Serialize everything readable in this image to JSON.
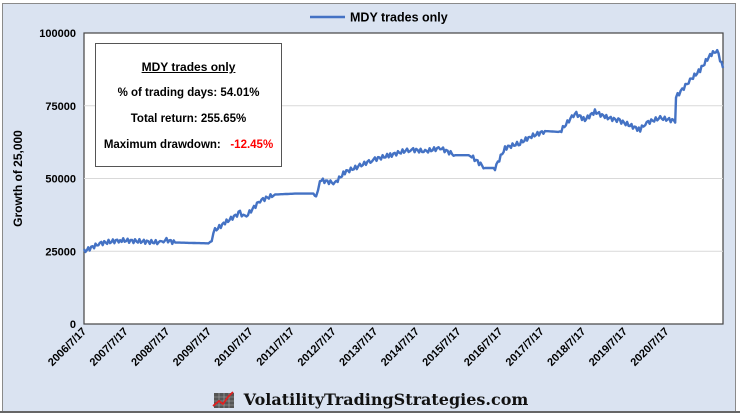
{
  "chart_data": {
    "type": "line",
    "title": "MDY trades only",
    "ylabel": "Growth of 25,000",
    "xlabel": "",
    "ylim": [
      0,
      100000
    ],
    "xlim": [
      2006.54,
      2021.9
    ],
    "yticks": [
      0,
      25000,
      50000,
      75000,
      100000
    ],
    "ytick_labels": [
      "0",
      "25000",
      "50000",
      "75000",
      "100000"
    ],
    "xtick_labels": [
      "2006/7/17",
      "2007/7/17",
      "2008/7/17",
      "2009/7/17",
      "2010/7/17",
      "2011/7/17",
      "2012/7/17",
      "2013/7/17",
      "2014/7/17",
      "2015/7/17",
      "2016/7/17",
      "2017/7/17",
      "2018/7/17",
      "2019/7/17",
      "2020/7/17"
    ],
    "legend": {
      "position": "top-center",
      "entries": [
        "MDY trades only"
      ]
    },
    "grid": "horizontal",
    "series": [
      {
        "name": "MDY trades only",
        "color": "#4472c4",
        "x": [
          2006.54,
          2006.92,
          2007.41,
          2008.37,
          2008.49,
          2008.73,
          2009.57,
          2009.69,
          2009.93,
          2010.29,
          2010.41,
          2010.77,
          2011.13,
          2011.61,
          2012.09,
          2012.12,
          2012.21,
          2012.57,
          2012.81,
          2013.17,
          2013.46,
          2013.9,
          2014.38,
          2014.74,
          2015.1,
          2015.46,
          2015.82,
          2016.18,
          2016.42,
          2016.66,
          2017.02,
          2017.26,
          2017.62,
          2017.98,
          2018.34,
          2018.58,
          2018.82,
          2019.06,
          2019.42,
          2019.91,
          2020.03,
          2020.39,
          2020.75,
          2020.77,
          2021.11,
          2021.35,
          2021.59,
          2021.76,
          2021.9
        ],
        "values": [
          25000,
          27700,
          28800,
          28000,
          29000,
          28000,
          27700,
          32200,
          34800,
          38300,
          36600,
          42400,
          44500,
          44800,
          44800,
          43100,
          49500,
          48400,
          52200,
          54300,
          56400,
          58000,
          60000,
          59300,
          60500,
          58000,
          58000,
          53600,
          53600,
          60500,
          62200,
          64300,
          66300,
          66000,
          72500,
          70200,
          73000,
          71200,
          69800,
          66700,
          69000,
          70800,
          69800,
          78000,
          83800,
          87300,
          92500,
          94000,
          88000
        ]
      }
    ]
  },
  "stats_box": {
    "title": "MDY trades only",
    "pct_trading_days": "% of trading days:  54.01%",
    "total_return": "Total return:  255.65%",
    "max_drawdown_label": "Maximum drawdown:",
    "max_drawdown_value": "-12.45%"
  },
  "footer": {
    "site": "VolatilityTradingStrategies.com",
    "logo_icon": "chart-logo-icon"
  }
}
